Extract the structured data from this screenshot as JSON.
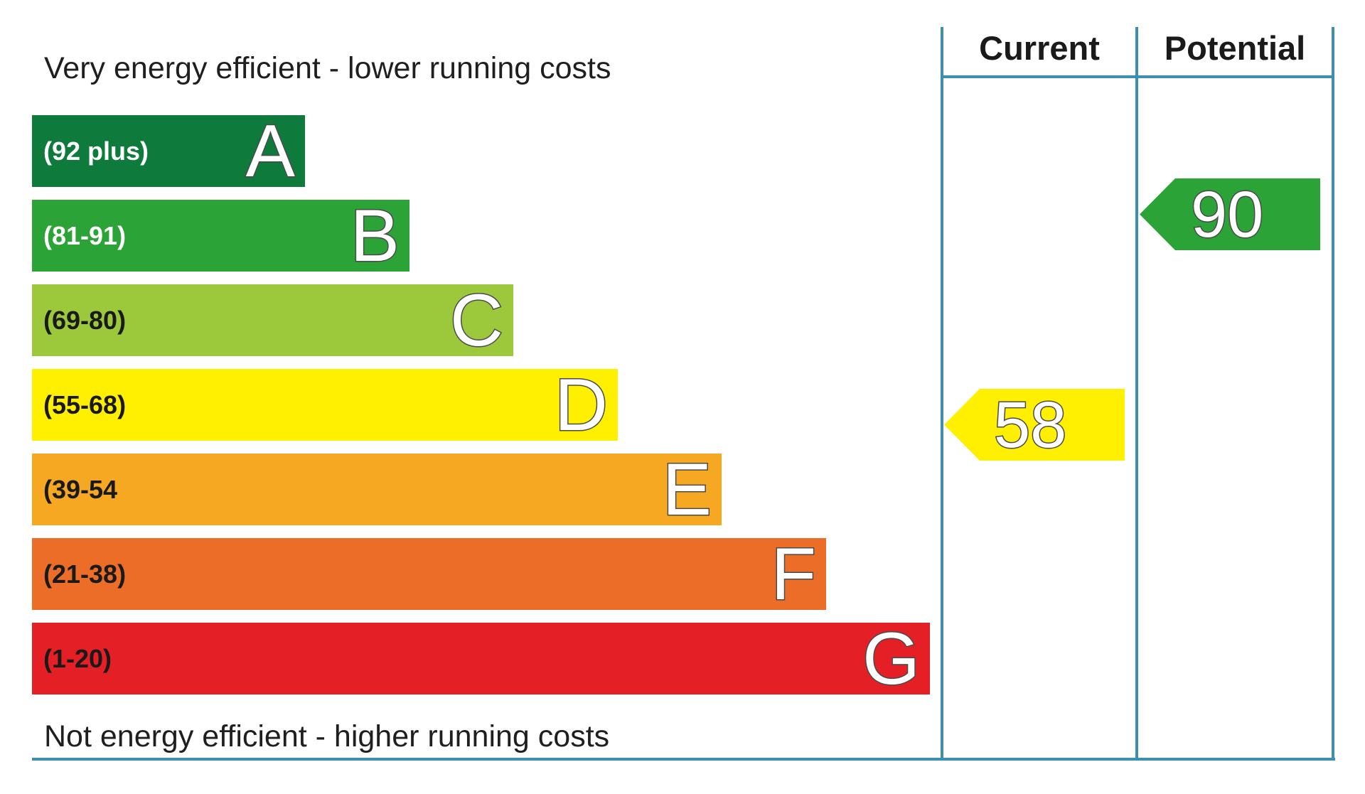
{
  "chart_data": {
    "type": "bar",
    "top_caption": "Very energy efficient - lower running costs",
    "bottom_caption": "Not energy efficient - higher running costs",
    "bands": [
      {
        "letter": "A",
        "range": "(92 plus)",
        "color": "#0e7a3c",
        "text_color": "#ffffff"
      },
      {
        "letter": "B",
        "range": "(81-91)",
        "color": "#2ba336",
        "text_color": "#ffffff"
      },
      {
        "letter": "C",
        "range": "(69-80)",
        "color": "#9bc93b",
        "text_color": "#1a1a1a"
      },
      {
        "letter": "D",
        "range": "(55-68)",
        "color": "#ffef00",
        "text_color": "#1a1a1a"
      },
      {
        "letter": "E",
        "range": "(39-54",
        "color": "#f6a823",
        "text_color": "#1a1a1a"
      },
      {
        "letter": "F",
        "range": "(21-38)",
        "color": "#eb6d27",
        "text_color": "#1a1a1a"
      },
      {
        "letter": "G",
        "range": "(1-20)",
        "color": "#e41f26",
        "text_color": "#1a1a1a"
      }
    ],
    "columns": {
      "current_label": "Current",
      "potential_label": "Potential"
    },
    "ratings": {
      "current": {
        "value": 58,
        "band": "D",
        "color": "#ffef00"
      },
      "potential": {
        "value": 90,
        "band": "B",
        "color": "#2ba336"
      }
    }
  }
}
